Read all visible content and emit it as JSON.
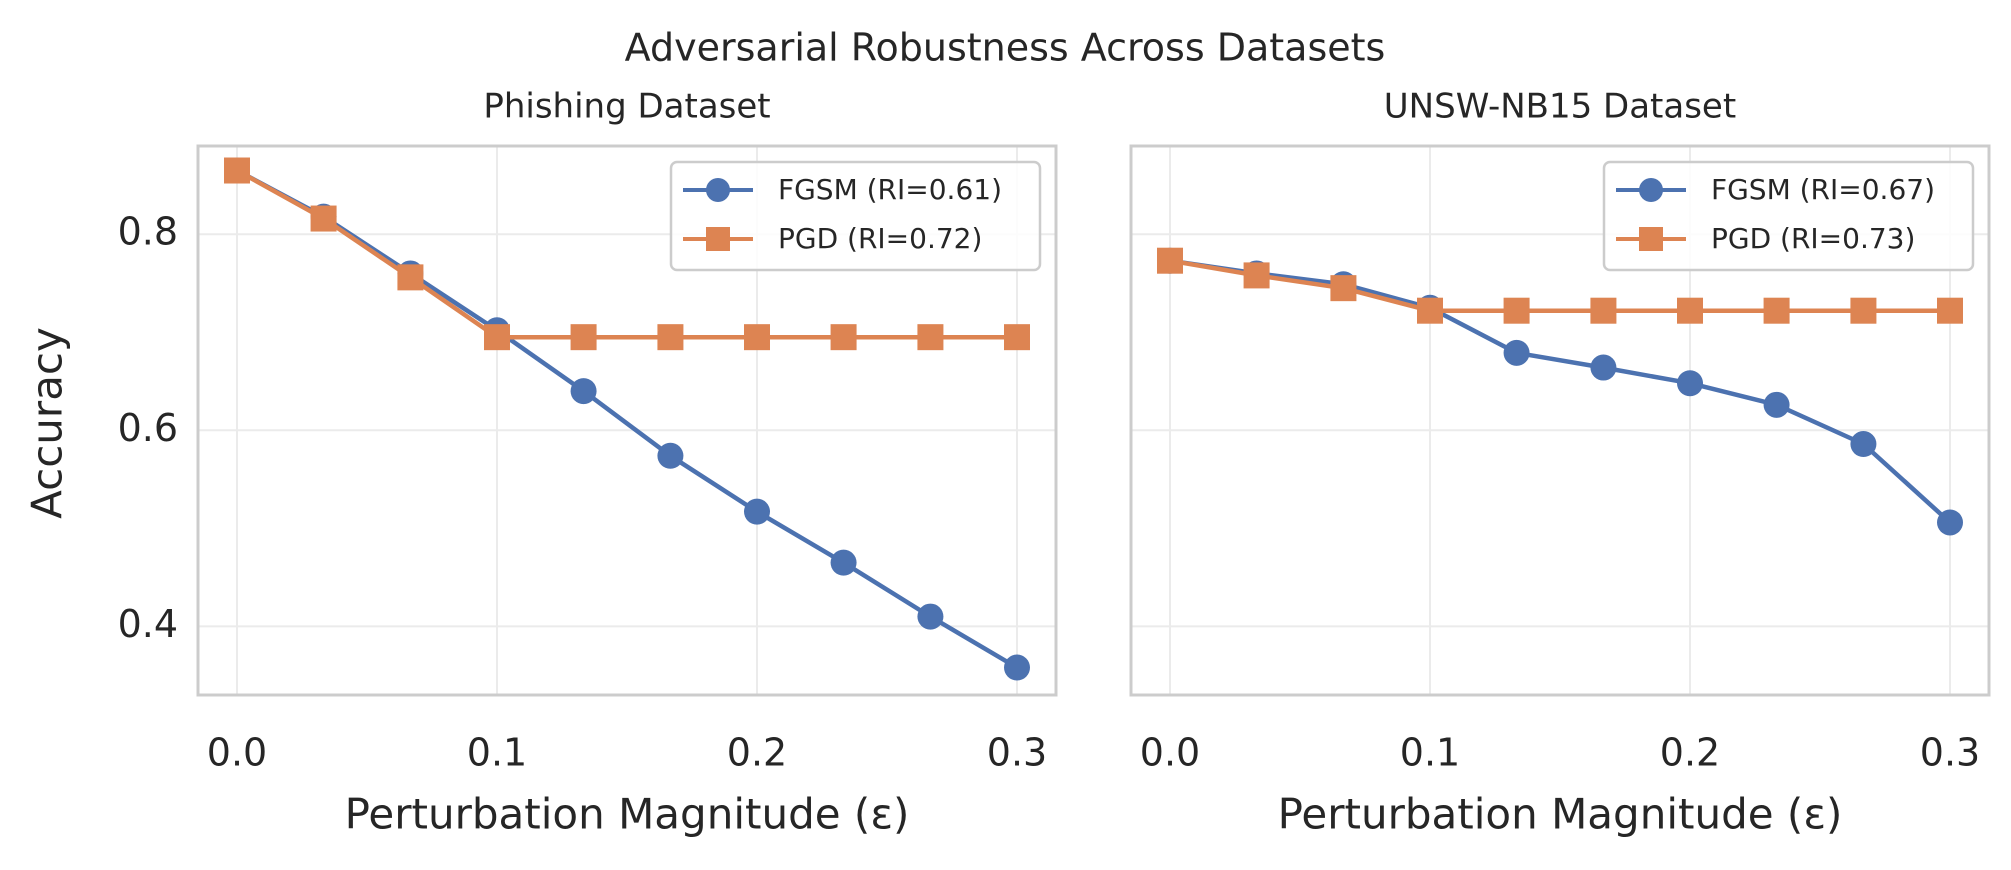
{
  "figure": {
    "suptitle": "Adversarial Robustness Across Datasets"
  },
  "colors": {
    "fgsm": "#4c72b0",
    "pgd": "#dd8452",
    "grid": "#ebebeb",
    "spine": "#cccccc",
    "text": "#262626"
  },
  "chart_data": [
    {
      "type": "line",
      "title": "Phishing Dataset",
      "xlabel": "Perturbation Magnitude (ε)",
      "ylabel": "Accuracy",
      "xlim": [
        -0.015,
        0.315
      ],
      "ylim": [
        0.33,
        0.89
      ],
      "xticks": [
        0.0,
        0.1,
        0.2,
        0.3
      ],
      "xtick_labels": [
        "0.0",
        "0.1",
        "0.2",
        "0.3"
      ],
      "yticks": [
        0.4,
        0.6,
        0.8
      ],
      "ytick_labels": [
        "0.4",
        "0.6",
        "0.8"
      ],
      "grid": true,
      "legend": "top-right",
      "x": [
        0.0,
        0.0333,
        0.0667,
        0.1,
        0.1333,
        0.1667,
        0.2,
        0.2333,
        0.2667,
        0.3
      ],
      "series": [
        {
          "name": "FGSM (RI=0.61)",
          "marker": "circle",
          "values": [
            0.865,
            0.818,
            0.76,
            0.702,
            0.64,
            0.574,
            0.517,
            0.465,
            0.41,
            0.358
          ]
        },
        {
          "name": "PGD (RI=0.72)",
          "marker": "square",
          "values": [
            0.865,
            0.816,
            0.756,
            0.695,
            0.695,
            0.695,
            0.695,
            0.695,
            0.695,
            0.695
          ]
        }
      ]
    },
    {
      "type": "line",
      "title": "UNSW-NB15 Dataset",
      "xlabel": "Perturbation Magnitude (ε)",
      "ylabel": "",
      "xlim": [
        -0.015,
        0.315
      ],
      "ylim": [
        0.33,
        0.89
      ],
      "xticks": [
        0.0,
        0.1,
        0.2,
        0.3
      ],
      "xtick_labels": [
        "0.0",
        "0.1",
        "0.2",
        "0.3"
      ],
      "yticks": [
        0.4,
        0.6,
        0.8
      ],
      "ytick_labels": [],
      "grid": true,
      "legend": "top-right",
      "x": [
        0.0,
        0.0333,
        0.0667,
        0.1,
        0.1333,
        0.1667,
        0.2,
        0.2333,
        0.2667,
        0.3
      ],
      "series": [
        {
          "name": "FGSM (RI=0.67)",
          "marker": "circle",
          "values": [
            0.773,
            0.76,
            0.749,
            0.725,
            0.679,
            0.664,
            0.648,
            0.626,
            0.586,
            0.506
          ]
        },
        {
          "name": "PGD (RI=0.73)",
          "marker": "square",
          "values": [
            0.773,
            0.758,
            0.745,
            0.722,
            0.722,
            0.722,
            0.722,
            0.722,
            0.722,
            0.722
          ]
        }
      ]
    }
  ]
}
